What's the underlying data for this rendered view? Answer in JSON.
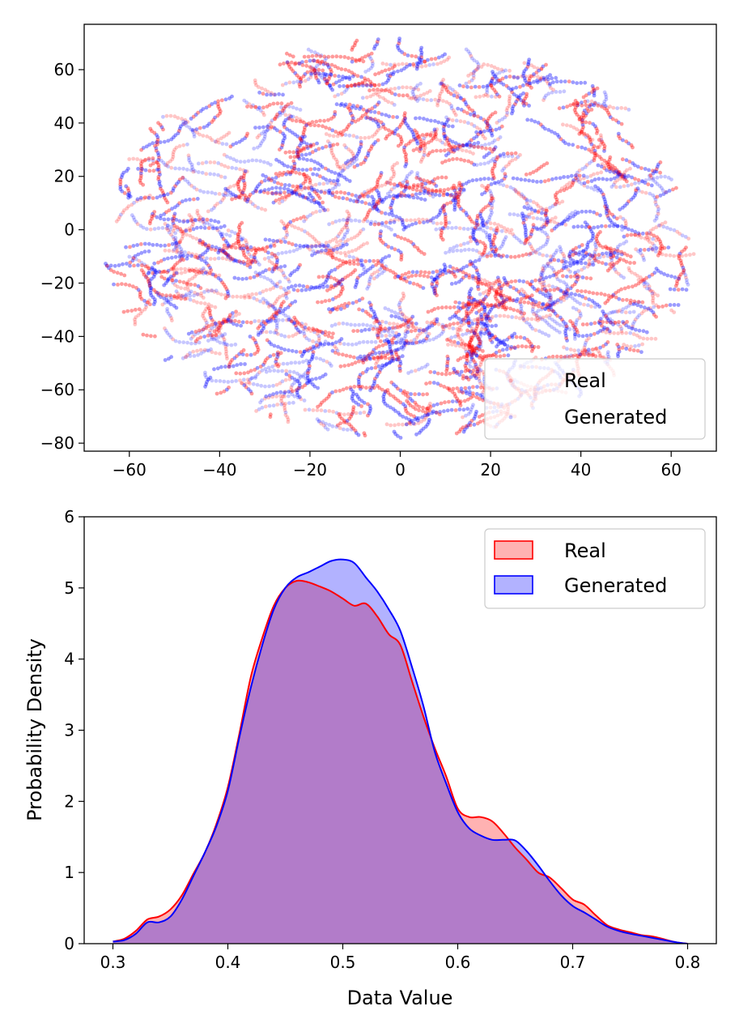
{
  "chart_data": [
    {
      "type": "scatter",
      "title": "",
      "xlabel": "",
      "ylabel": "",
      "xlim": [
        -70,
        70
      ],
      "ylim": [
        -83,
        77
      ],
      "xticks": [
        -60,
        -40,
        -20,
        0,
        20,
        40,
        60
      ],
      "yticks": [
        -80,
        -60,
        -40,
        -20,
        0,
        20,
        40,
        60
      ],
      "xtick_labels": [
        "−60",
        "−40",
        "−20",
        "0",
        "20",
        "40",
        "60"
      ],
      "ytick_labels": [
        "−80",
        "−60",
        "−40",
        "−20",
        "0",
        "20",
        "40",
        "60"
      ],
      "legend_position": "lower-right",
      "series": [
        {
          "name": "Real",
          "color": "#ff0000",
          "alpha": 0.2
        },
        {
          "name": "Generated",
          "color": "#0000ff",
          "alpha": 0.2
        }
      ],
      "note": "Dense t-SNE point cloud roughly bounded by x in [-64, 64], y in [-76, 70]"
    },
    {
      "type": "area",
      "title": "",
      "xlabel": "Data Value",
      "ylabel": "Probability Density",
      "xlim": [
        0.275,
        0.825
      ],
      "ylim": [
        0,
        6
      ],
      "xticks": [
        0.3,
        0.4,
        0.5,
        0.6,
        0.7,
        0.8
      ],
      "yticks": [
        0,
        1,
        2,
        3,
        4,
        5,
        6
      ],
      "xtick_labels": [
        "0.3",
        "0.4",
        "0.5",
        "0.6",
        "0.7",
        "0.8"
      ],
      "ytick_labels": [
        "0",
        "1",
        "2",
        "3",
        "4",
        "5",
        "6"
      ],
      "legend_position": "top-right",
      "series": [
        {
          "name": "Real",
          "color": "#ff0000",
          "fill": "#ff0000",
          "alpha": 0.3,
          "x": [
            0.3,
            0.31,
            0.32,
            0.33,
            0.34,
            0.35,
            0.36,
            0.37,
            0.38,
            0.39,
            0.4,
            0.41,
            0.42,
            0.43,
            0.44,
            0.45,
            0.46,
            0.47,
            0.48,
            0.49,
            0.5,
            0.51,
            0.52,
            0.53,
            0.54,
            0.55,
            0.56,
            0.57,
            0.58,
            0.59,
            0.6,
            0.61,
            0.62,
            0.63,
            0.64,
            0.65,
            0.66,
            0.67,
            0.68,
            0.69,
            0.7,
            0.71,
            0.72,
            0.73,
            0.74,
            0.75,
            0.76,
            0.77,
            0.78,
            0.79,
            0.8
          ],
          "y": [
            0.03,
            0.07,
            0.18,
            0.34,
            0.38,
            0.48,
            0.68,
            0.98,
            1.28,
            1.68,
            2.2,
            2.95,
            3.75,
            4.3,
            4.75,
            5.0,
            5.1,
            5.08,
            5.02,
            4.95,
            4.85,
            4.75,
            4.78,
            4.6,
            4.35,
            4.2,
            3.7,
            3.2,
            2.75,
            2.35,
            1.9,
            1.78,
            1.78,
            1.72,
            1.55,
            1.35,
            1.18,
            1.0,
            0.93,
            0.78,
            0.62,
            0.55,
            0.4,
            0.26,
            0.2,
            0.16,
            0.12,
            0.1,
            0.06,
            0.02,
            0.0
          ]
        },
        {
          "name": "Generated",
          "color": "#0000ff",
          "fill": "#0000ff",
          "alpha": 0.3,
          "x": [
            0.3,
            0.31,
            0.32,
            0.33,
            0.34,
            0.35,
            0.36,
            0.37,
            0.38,
            0.39,
            0.4,
            0.41,
            0.42,
            0.43,
            0.44,
            0.45,
            0.46,
            0.47,
            0.48,
            0.49,
            0.5,
            0.51,
            0.52,
            0.53,
            0.54,
            0.55,
            0.56,
            0.57,
            0.58,
            0.59,
            0.6,
            0.61,
            0.62,
            0.63,
            0.64,
            0.65,
            0.66,
            0.67,
            0.68,
            0.69,
            0.7,
            0.71,
            0.72,
            0.73,
            0.74,
            0.75,
            0.76,
            0.77,
            0.78,
            0.79,
            0.8
          ],
          "y": [
            0.03,
            0.05,
            0.14,
            0.3,
            0.3,
            0.38,
            0.62,
            0.95,
            1.28,
            1.65,
            2.15,
            2.9,
            3.6,
            4.2,
            4.7,
            5.0,
            5.15,
            5.22,
            5.3,
            5.38,
            5.4,
            5.35,
            5.15,
            4.95,
            4.7,
            4.4,
            3.9,
            3.35,
            2.7,
            2.25,
            1.85,
            1.62,
            1.52,
            1.46,
            1.46,
            1.45,
            1.3,
            1.1,
            0.88,
            0.68,
            0.53,
            0.44,
            0.34,
            0.24,
            0.18,
            0.14,
            0.11,
            0.08,
            0.05,
            0.02,
            0.0
          ]
        }
      ]
    }
  ]
}
